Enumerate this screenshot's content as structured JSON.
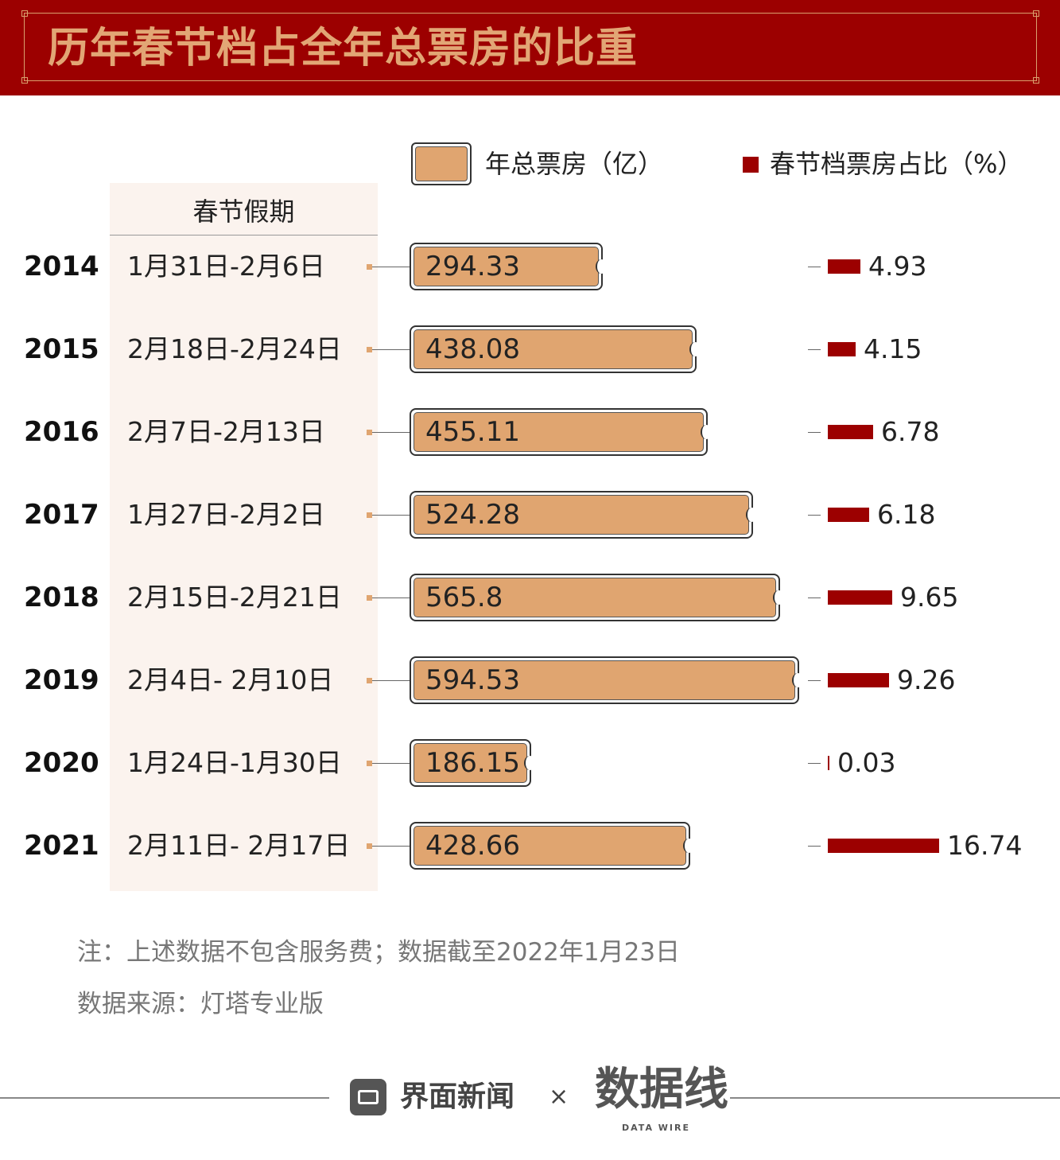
{
  "title": "历年春节档占全年总票房的比重",
  "legend": {
    "box_office": "年总票房（亿）",
    "share": "春节档票房占比（%）"
  },
  "holiday_header": "春节假期",
  "rows": [
    {
      "year": "2014",
      "holiday": "1月31日-2月6日",
      "box_office": "294.33",
      "share": "4.93"
    },
    {
      "year": "2015",
      "holiday": "2月18日-2月24日",
      "box_office": "438.08",
      "share": "4.15"
    },
    {
      "year": "2016",
      "holiday": "2月7日-2月13日",
      "box_office": "455.11",
      "share": "6.78"
    },
    {
      "year": "2017",
      "holiday": "1月27日-2月2日",
      "box_office": "524.28",
      "share": "6.18"
    },
    {
      "year": "2018",
      "holiday": "2月15日-2月21日",
      "box_office": "565.8",
      "share": "9.65"
    },
    {
      "year": "2019",
      "holiday": "2月4日- 2月10日",
      "box_office": "594.53",
      "share": "9.26"
    },
    {
      "year": "2020",
      "holiday": "1月24日-1月30日",
      "box_office": "186.15",
      "share": "0.03"
    },
    {
      "year": "2021",
      "holiday": "2月11日- 2月17日",
      "box_office": "428.66",
      "share": "16.74"
    }
  ],
  "chart_data": {
    "type": "bar",
    "title": "历年春节档占全年总票房的比重",
    "categories": [
      "2014",
      "2015",
      "2016",
      "2017",
      "2018",
      "2019",
      "2020",
      "2021"
    ],
    "series": [
      {
        "name": "年总票房（亿）",
        "values": [
          294.33,
          438.08,
          455.11,
          524.28,
          565.8,
          594.53,
          186.15,
          428.66
        ],
        "color": "#e0a570"
      },
      {
        "name": "春节档票房占比（%）",
        "values": [
          4.93,
          4.15,
          6.78,
          6.18,
          9.65,
          9.26,
          0.03,
          16.74
        ],
        "color": "#9c0000"
      }
    ],
    "orientation": "horizontal",
    "legend": "top-right",
    "grid": false
  },
  "notes": {
    "note": "注：上述数据不包含服务费；数据截至2022年1月23日",
    "source": "数据来源：灯塔专业版"
  },
  "footer": {
    "brand": "界面新闻",
    "times": "×",
    "partner": "数据线",
    "partner_sub": "DATA WIRE"
  },
  "colors": {
    "header": "#9c0000",
    "title": "#e2a675",
    "bar": "#e0a570",
    "share_bar": "#9c0000",
    "panel": "#fbf3ee"
  }
}
